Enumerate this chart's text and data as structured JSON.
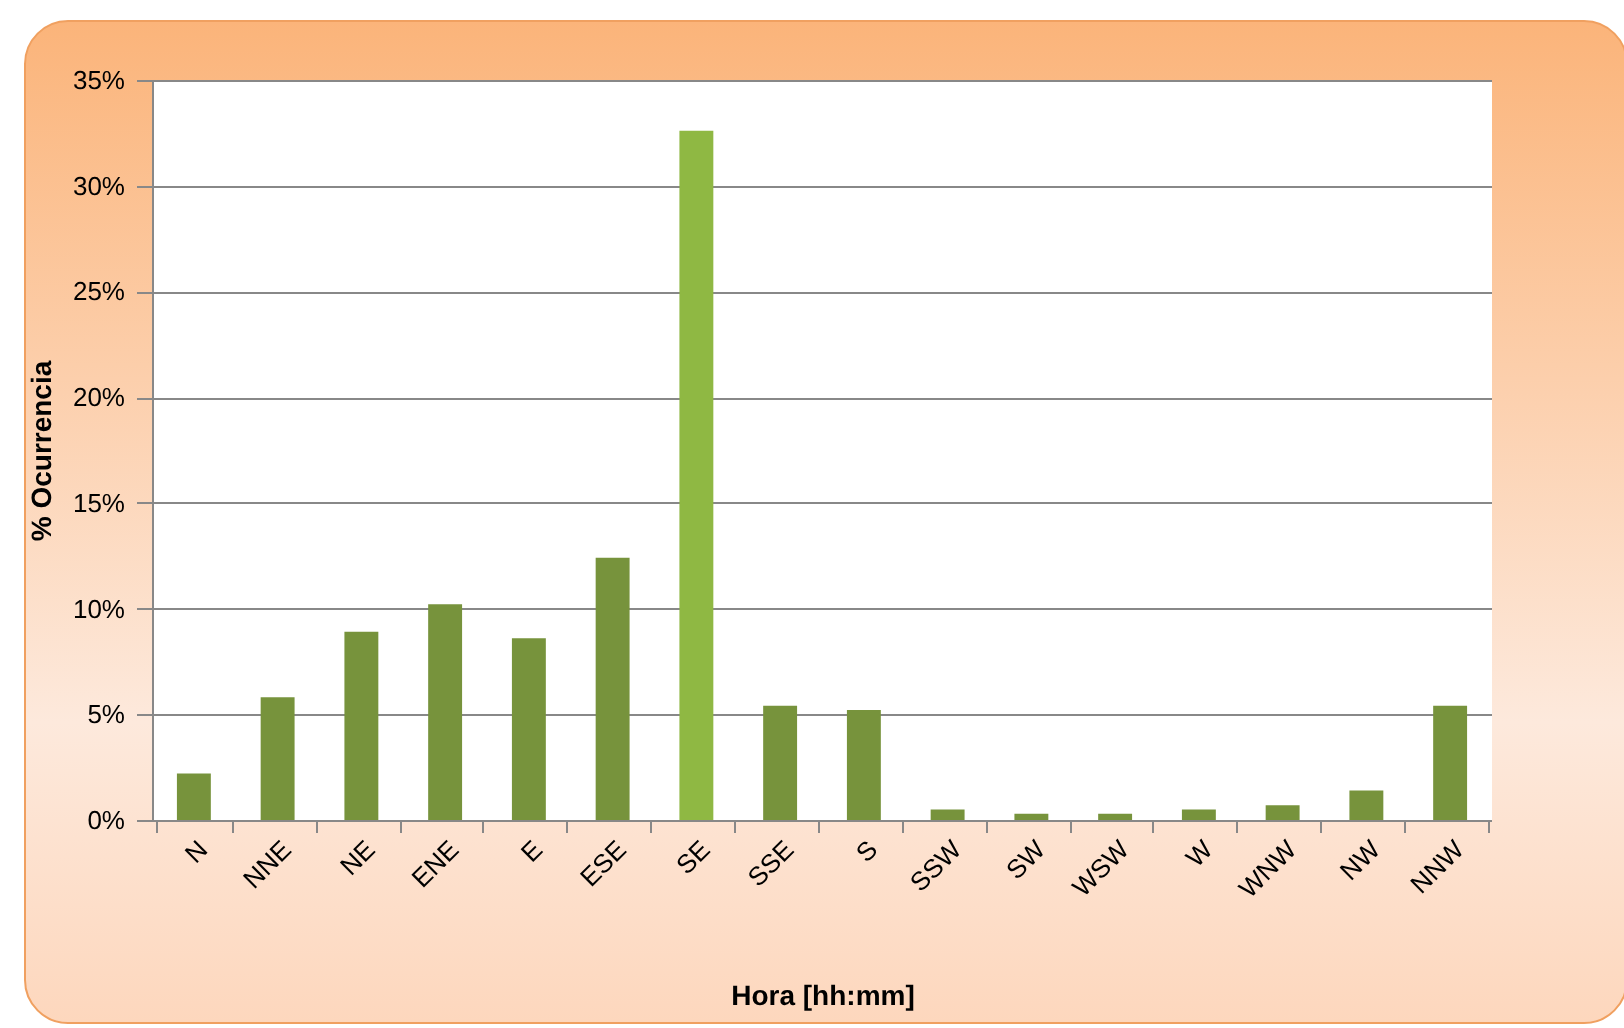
{
  "chart_data": {
    "type": "bar",
    "xlabel": "Hora [hh:mm]",
    "ylabel": "% Ocurrencia",
    "categories": [
      "N",
      "NNE",
      "NE",
      "ENE",
      "E",
      "ESE",
      "SE",
      "SSE",
      "S",
      "SSW",
      "SW",
      "WSW",
      "W",
      "WNW",
      "NW",
      "NNW"
    ],
    "values": [
      2.2,
      5.8,
      8.9,
      10.2,
      8.6,
      12.4,
      32.6,
      5.4,
      5.2,
      0.5,
      0.3,
      0.3,
      0.5,
      0.7,
      1.4,
      5.4
    ],
    "colors": [
      "#77933c",
      "#77933c",
      "#77933c",
      "#77933c",
      "#77933c",
      "#77933c",
      "#8fb843",
      "#77933c",
      "#77933c",
      "#77933c",
      "#77933c",
      "#77933c",
      "#77933c",
      "#77933c",
      "#77933c",
      "#77933c"
    ],
    "ylim": [
      0,
      35
    ],
    "yticks": [
      {
        "value": 0,
        "label": "0%"
      },
      {
        "value": 5,
        "label": "5%"
      },
      {
        "value": 10,
        "label": "10%"
      },
      {
        "value": 15,
        "label": "15%"
      },
      {
        "value": 20,
        "label": "20%"
      },
      {
        "value": 25,
        "label": "25%"
      },
      {
        "value": 30,
        "label": "30%"
      },
      {
        "value": 35,
        "label": "35%"
      }
    ],
    "grid": "y",
    "legend": false
  }
}
